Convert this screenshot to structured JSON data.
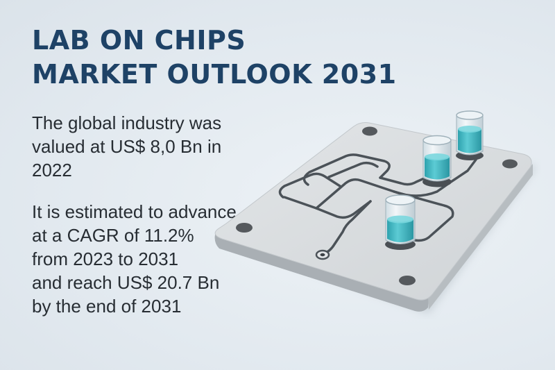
{
  "heading": {
    "line1": "LAB ON CHIPS",
    "line2": "MARKET OUTLOOK 2031"
  },
  "valuation": {
    "line1": "The global industry was",
    "line2": "valued at US$ 8,0 Bn in",
    "line3": "2022"
  },
  "forecast": {
    "line1": "It is estimated to advance",
    "line2": "at a CAGR of 11.2%",
    "line3": "from 2023 to 2031",
    "line4": "and reach US$ 20.7 Bn",
    "line5": "by the end of 2031"
  },
  "colors": {
    "title": "#1e4266",
    "body_text": "#272d33",
    "background": "#e4ebf1",
    "chip_surface": "#d8dcdf",
    "channel": "#4b5258",
    "fluid": "#3fb8c4"
  },
  "illustration": {
    "icon": "lab-on-chip-illustration",
    "vial_count": 3
  }
}
